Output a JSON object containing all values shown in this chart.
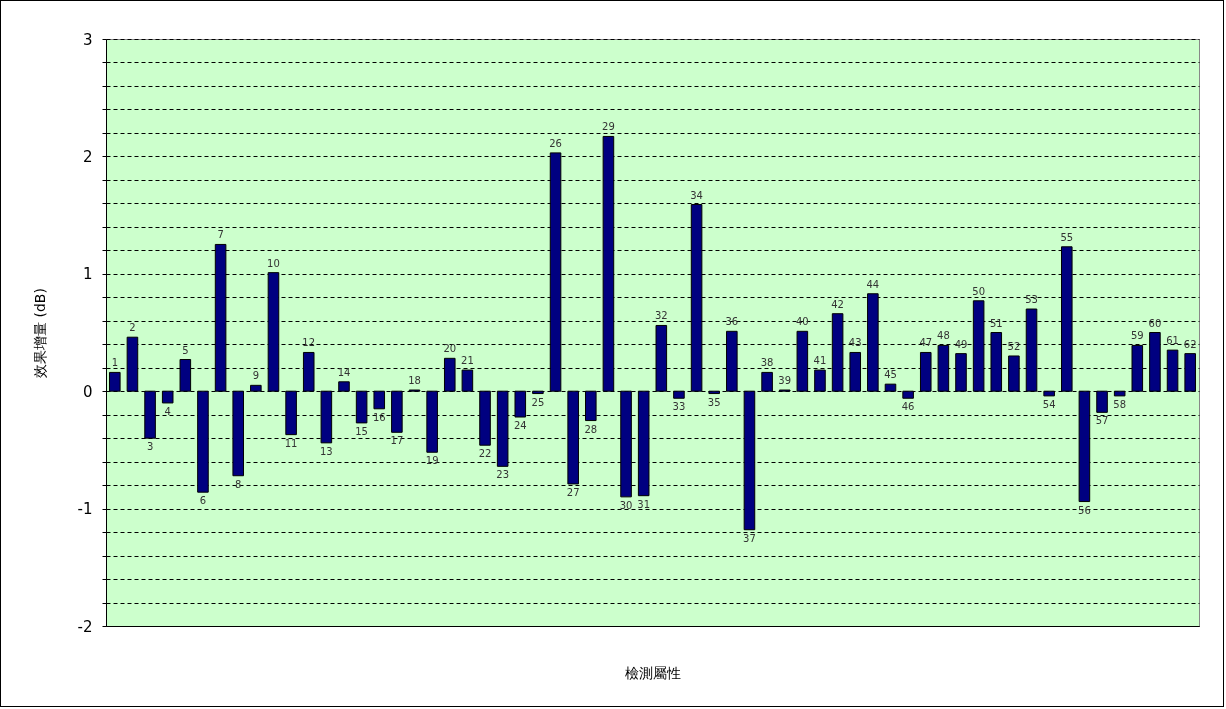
{
  "chart_data": {
    "type": "bar",
    "xlabel": "檢測屬性",
    "ylabel": "效果增量 (dB)",
    "categories": [
      "1",
      "2",
      "3",
      "4",
      "5",
      "6",
      "7",
      "8",
      "9",
      "10",
      "11",
      "12",
      "13",
      "14",
      "15",
      "16",
      "17",
      "18",
      "19",
      "20",
      "21",
      "22",
      "23",
      "24",
      "25",
      "26",
      "27",
      "28",
      "29",
      "30",
      "31",
      "32",
      "33",
      "34",
      "35",
      "36",
      "37",
      "38",
      "39",
      "40",
      "41",
      "42",
      "43",
      "44",
      "45",
      "46",
      "47",
      "48",
      "49",
      "50",
      "51",
      "52",
      "53",
      "54",
      "55",
      "56",
      "57",
      "58",
      "59",
      "60",
      "61",
      "62"
    ],
    "values": [
      0.16,
      0.46,
      -0.4,
      -0.1,
      0.27,
      -0.86,
      1.25,
      -0.72,
      0.05,
      1.01,
      -0.37,
      0.33,
      -0.44,
      0.08,
      -0.27,
      -0.15,
      -0.35,
      0.01,
      -0.52,
      0.28,
      0.18,
      -0.46,
      -0.64,
      -0.22,
      -0.02,
      2.03,
      -0.79,
      -0.25,
      2.17,
      -0.9,
      -0.89,
      0.56,
      -0.06,
      1.59,
      -0.02,
      0.51,
      -1.18,
      0.16,
      0.01,
      0.51,
      0.18,
      0.66,
      0.33,
      0.83,
      0.06,
      -0.06,
      0.33,
      0.39,
      0.32,
      0.77,
      0.5,
      0.3,
      0.7,
      -0.04,
      1.23,
      -0.94,
      -0.18,
      -0.04,
      0.39,
      0.5,
      0.35,
      0.32
    ],
    "color": "#000080",
    "ylim": [
      -2,
      3
    ],
    "yticks": [
      -2,
      {
        "value": -1.8,
        "label": null
      },
      {
        "value": -1.6,
        "label": null
      },
      {
        "value": -1.4,
        "label": null
      },
      {
        "value": -1.2,
        "label": null
      },
      -1,
      {
        "value": -0.8,
        "label": null
      },
      {
        "value": -0.6,
        "label": null
      },
      {
        "value": -0.4,
        "label": null
      },
      {
        "value": -0.2,
        "label": null
      },
      0,
      {
        "value": 0.2,
        "label": null
      },
      {
        "value": 0.4,
        "label": null
      },
      {
        "value": 0.6,
        "label": null
      },
      {
        "value": 0.8,
        "label": null
      },
      1,
      {
        "value": 1.2,
        "label": null
      },
      {
        "value": 1.4,
        "label": null
      },
      {
        "value": 1.6,
        "label": null
      },
      {
        "value": 1.8,
        "label": null
      },
      2,
      {
        "value": 2.2,
        "label": null
      },
      {
        "value": 2.4,
        "label": null
      },
      {
        "value": 2.6,
        "label": null
      },
      {
        "value": 2.8,
        "label": null
      },
      3
    ],
    "grid": "y",
    "line_style": "dashed",
    "tick_labels": "y"
  }
}
